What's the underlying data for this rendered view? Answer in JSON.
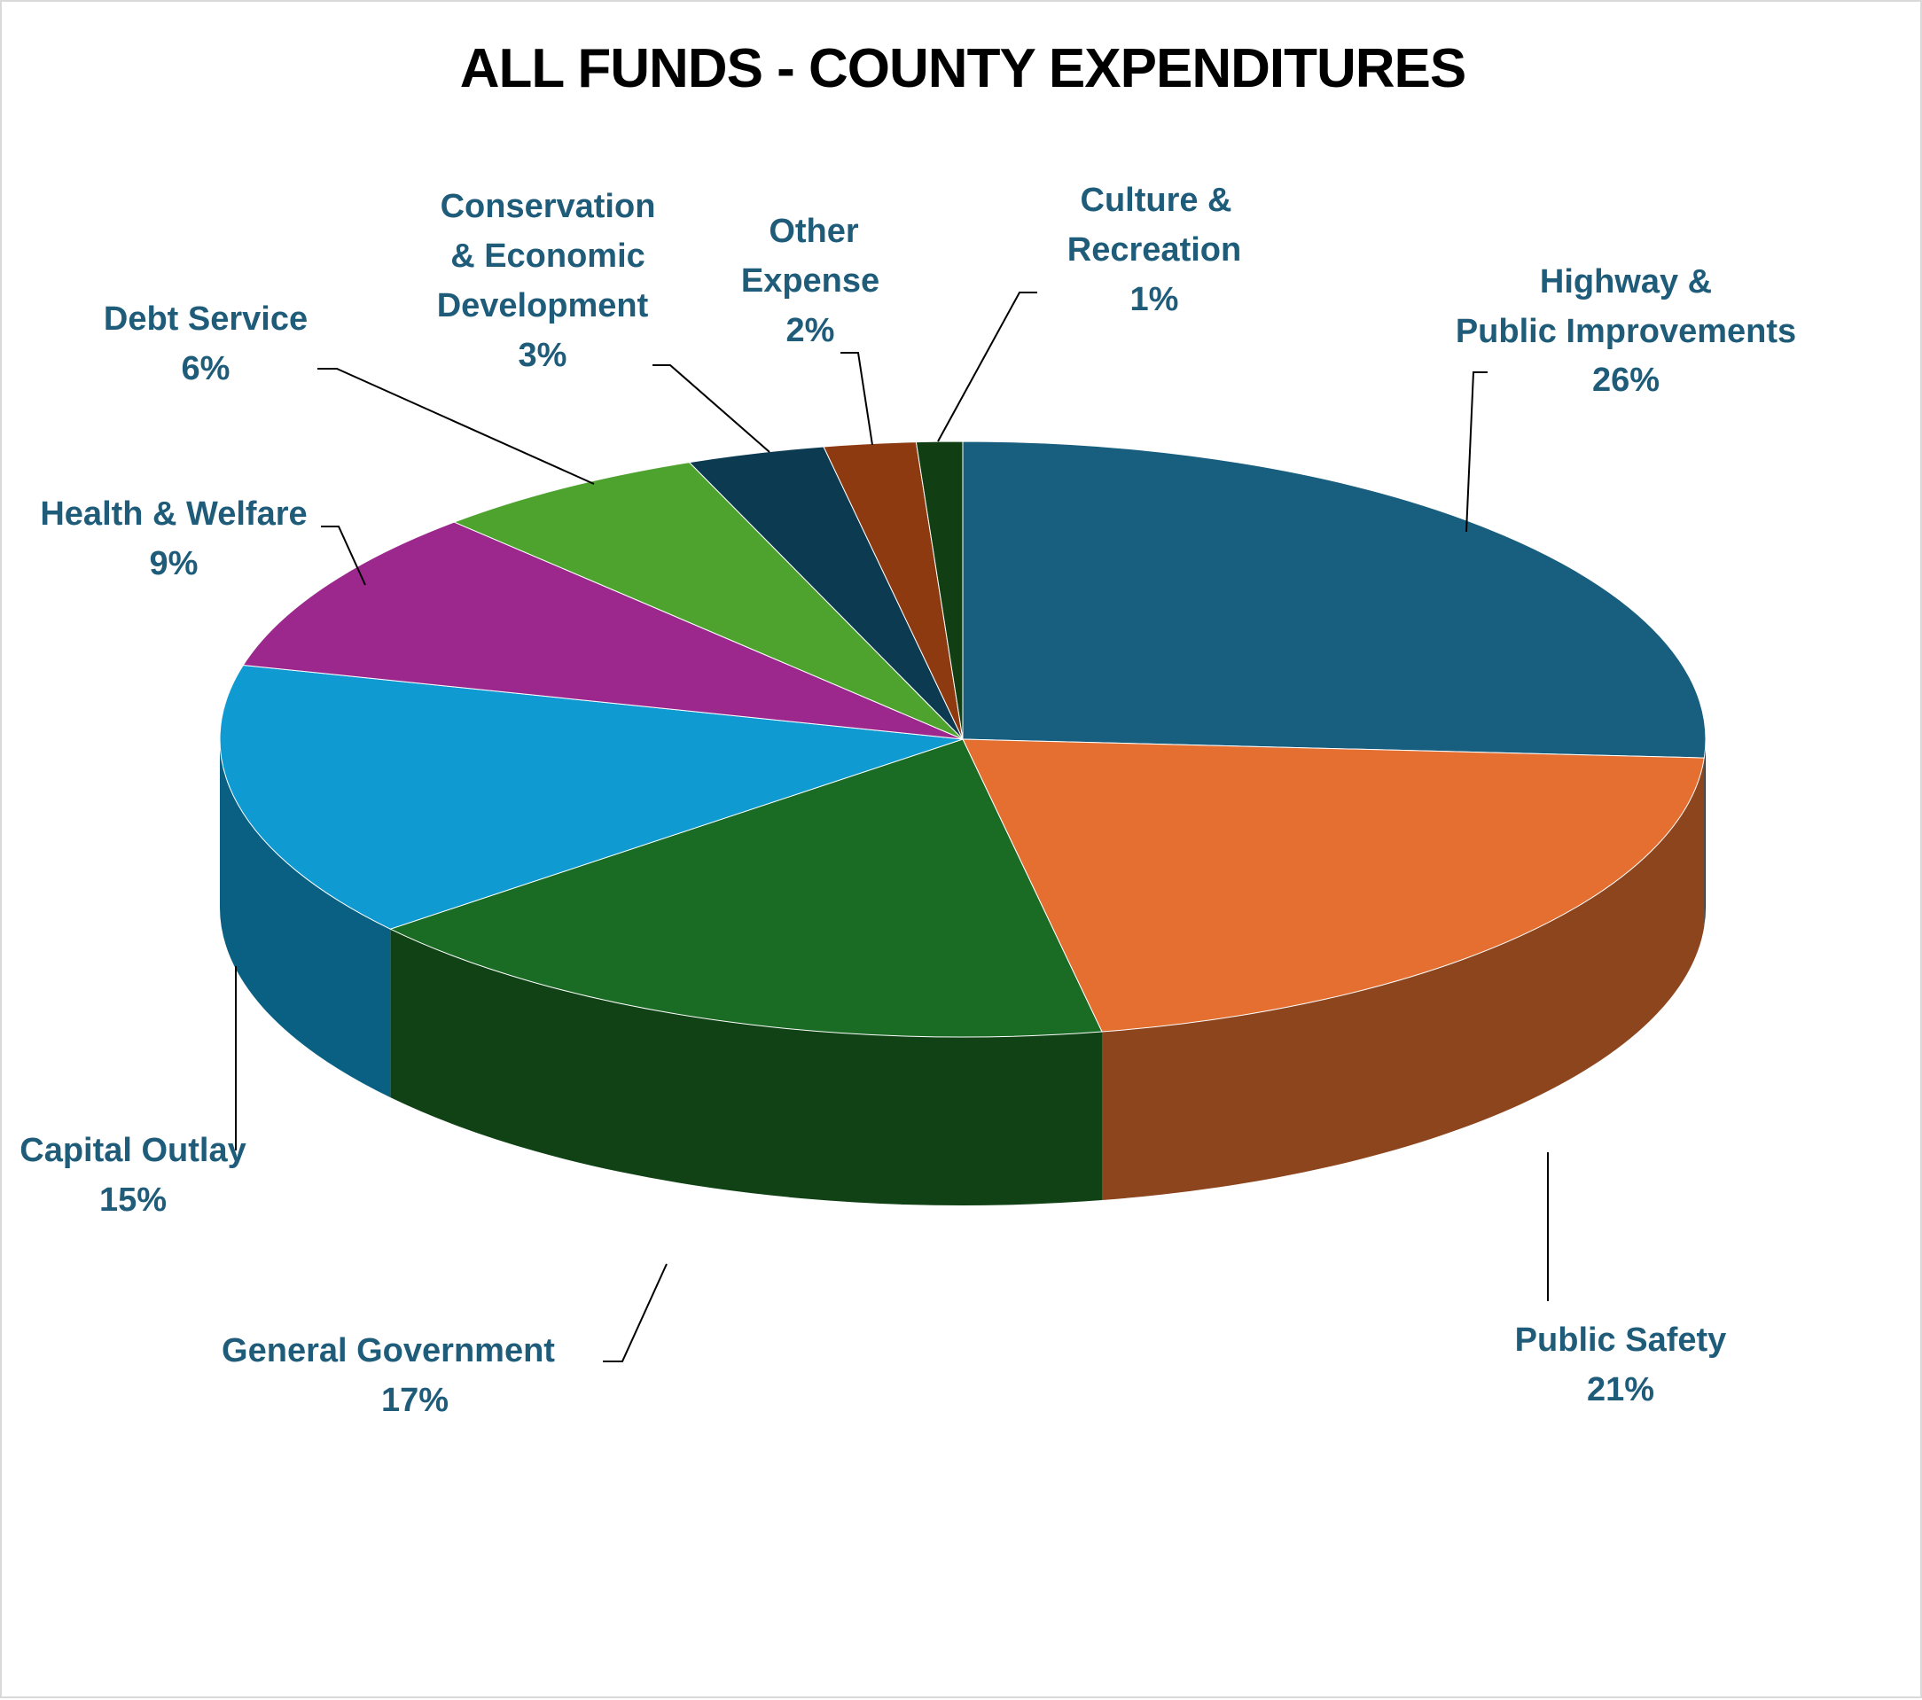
{
  "chart_data": {
    "type": "pie",
    "style": "3d",
    "title": "ALL FUNDS - COUNTY EXPENDITURES",
    "slices": [
      {
        "label": "Highway & Public Improvements",
        "value": 26,
        "value_label": "26%",
        "color": "#175E7F"
      },
      {
        "label": "Public Safety",
        "value": 21,
        "value_label": "21%",
        "color": "#E46F30"
      },
      {
        "label": "General Government",
        "value": 17,
        "value_label": "17%",
        "color": "#1A6B23"
      },
      {
        "label": "Capital Outlay",
        "value": 15,
        "value_label": "15%",
        "color": "#0F9BD1"
      },
      {
        "label": "Health & Welfare",
        "value": 9,
        "value_label": "9%",
        "color": "#9C288E"
      },
      {
        "label": "Debt Service",
        "value": 6,
        "value_label": "6%",
        "color": "#4EA32F"
      },
      {
        "label": "Conservation & Economic Development",
        "value": 3,
        "value_label": "3%",
        "color": "#0B3A51"
      },
      {
        "label": "Other Expense",
        "value": 2,
        "value_label": "2%",
        "color": "#8E3A10"
      },
      {
        "label": "Culture & Recreation",
        "value": 1,
        "value_label": "1%",
        "color": "#123E14"
      }
    ]
  }
}
